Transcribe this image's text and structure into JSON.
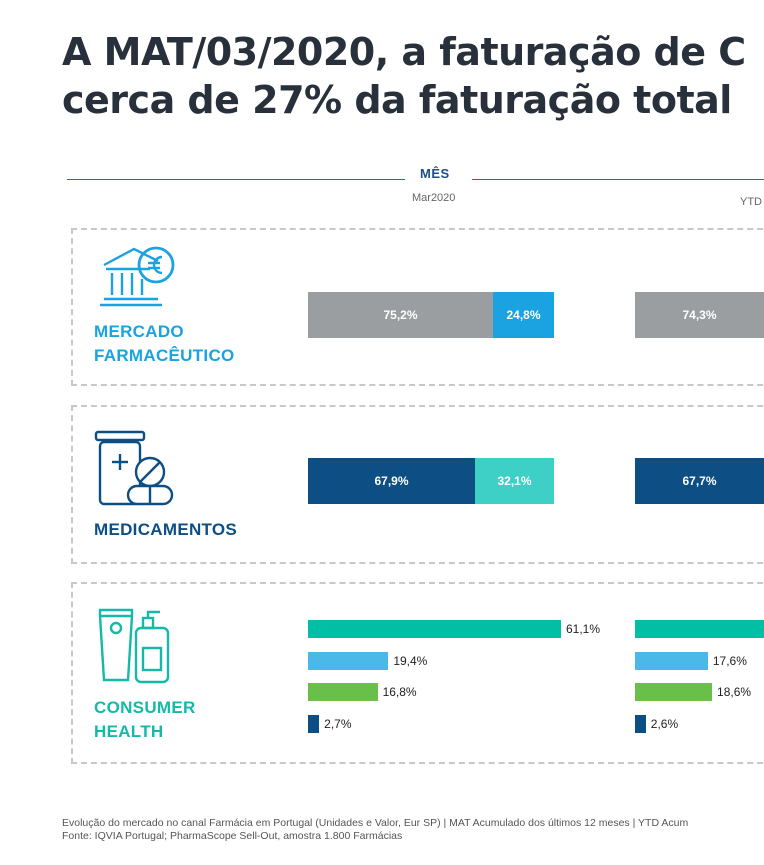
{
  "title": {
    "line1": "A MAT/03/2020, a faturação de C",
    "line2": "cerca de 27% da faturação total"
  },
  "columns": {
    "month": {
      "label": "MÊS",
      "sub": "Mar2020"
    },
    "ytd": {
      "sub": "YTD"
    }
  },
  "colors": {
    "grey": "#9b9ea0",
    "blue_light": "#1aa3e0",
    "navy": "#0d4e84",
    "aqua": "#3ecfc7",
    "teal": "#00bfa5",
    "sky": "#4ab9e8",
    "green": "#6abf4b",
    "dark_blue": "#0d4e84"
  },
  "icons": {
    "market": "bank-euro-icon",
    "medicines": "medicine-pills-icon",
    "consumer": "cosmetic-bottles-icon"
  },
  "chart_data": [
    {
      "type": "bar",
      "panel": "MERCADO FARMACÊUTICO",
      "stacked": true,
      "groups": [
        {
          "column": "Mar2020",
          "segments": [
            {
              "value": 75.2,
              "label": "75,2%",
              "color": "#9b9ea0"
            },
            {
              "value": 24.8,
              "label": "24,8%",
              "color": "#1aa3e0"
            }
          ]
        },
        {
          "column": "YTD",
          "segments": [
            {
              "value": 74.3,
              "label": "74,3%",
              "color": "#9b9ea0"
            }
          ]
        }
      ]
    },
    {
      "type": "bar",
      "panel": "MEDICAMENTOS",
      "stacked": true,
      "groups": [
        {
          "column": "Mar2020",
          "segments": [
            {
              "value": 67.9,
              "label": "67,9%",
              "color": "#0d4e84"
            },
            {
              "value": 32.1,
              "label": "32,1%",
              "color": "#3ecfc7"
            }
          ]
        },
        {
          "column": "YTD",
          "segments": [
            {
              "value": 67.7,
              "label": "67,7%",
              "color": "#0d4e84"
            }
          ]
        }
      ]
    },
    {
      "type": "bar",
      "panel": "CONSUMER HEALTH",
      "orientation": "horizontal",
      "groups": [
        {
          "column": "Mar2020",
          "values": [
            {
              "value": 61.1,
              "label": "61,1%",
              "color": "#00bfa5"
            },
            {
              "value": 19.4,
              "label": "19,4%",
              "color": "#4ab9e8"
            },
            {
              "value": 16.8,
              "label": "16,8%",
              "color": "#6abf4b"
            },
            {
              "value": 2.7,
              "label": "2,7%",
              "color": "#0d4e84"
            }
          ]
        },
        {
          "column": "YTD",
          "values": [
            {
              "value": null,
              "label": "",
              "color": "#00bfa5"
            },
            {
              "value": 17.6,
              "label": "17,6%",
              "color": "#4ab9e8"
            },
            {
              "value": 18.6,
              "label": "18,6%",
              "color": "#6abf4b"
            },
            {
              "value": 2.6,
              "label": "2,6%",
              "color": "#0d4e84"
            }
          ]
        }
      ]
    }
  ],
  "panels": {
    "market": {
      "line1": "MERCADO",
      "line2": "FARMACÊUTICO",
      "color": "#1aa3e0"
    },
    "medicines": {
      "line1": "MEDICAMENTOS",
      "color": "#0d4e84"
    },
    "consumer": {
      "line1": "CONSUMER",
      "line2": "HEALTH",
      "color": "#14b9a8"
    }
  },
  "footer": {
    "line1": "Evolução do mercado no canal Farmácia em Portugal (Unidades e Valor, Eur SP) | MAT Acumulado  dos últimos 12 meses | YTD Acum",
    "line2": "Fonte: IQVIA Portugal; PharmaScope Sell-Out, amostra 1.800 Farmácias"
  }
}
